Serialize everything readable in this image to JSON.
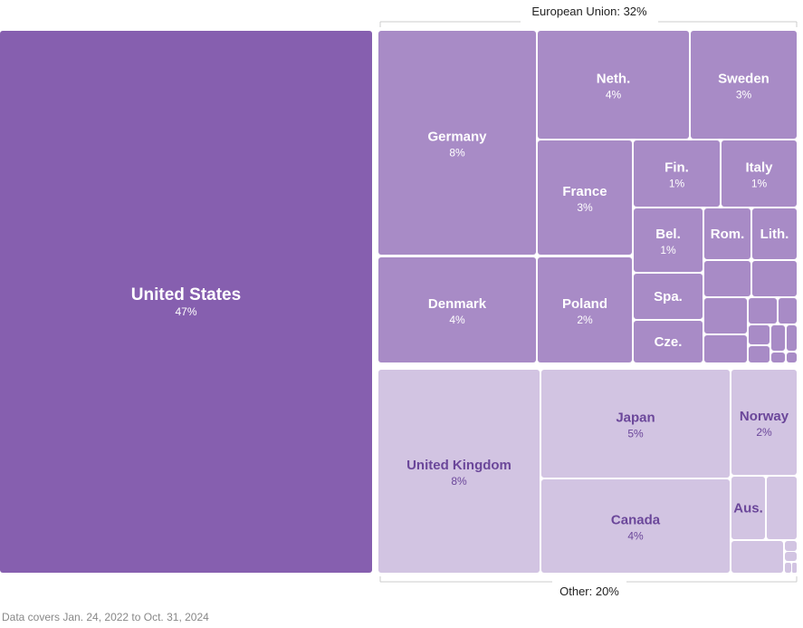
{
  "chart_data": {
    "type": "treemap",
    "unit": "%",
    "note": "Data covers Jan. 24, 2022 to Oct. 31, 2024",
    "colors": {
      "us": "#865faf",
      "eu": "#a88bc6",
      "other": "#d2c4e2",
      "dark_text": "#6b479a",
      "light_text": "#ffffff",
      "bracket": "#cccccc"
    },
    "groups": [
      {
        "id": "us",
        "label": ""
      },
      {
        "id": "eu",
        "label": "European Union: 32%"
      },
      {
        "id": "other",
        "label": "Other: 20%"
      }
    ],
    "items": [
      {
        "id": "usa",
        "group": "us",
        "name": "United States",
        "value": "47%"
      },
      {
        "id": "ger",
        "group": "eu",
        "name": "Germany",
        "value": "8%"
      },
      {
        "id": "den",
        "group": "eu",
        "name": "Denmark",
        "value": "4%"
      },
      {
        "id": "neth",
        "group": "eu",
        "name": "Neth.",
        "value": "4%"
      },
      {
        "id": "swe",
        "group": "eu",
        "name": "Sweden",
        "value": "3%"
      },
      {
        "id": "fra",
        "group": "eu",
        "name": "France",
        "value": "3%"
      },
      {
        "id": "fin",
        "group": "eu",
        "name": "Fin.",
        "value": "1%"
      },
      {
        "id": "ita",
        "group": "eu",
        "name": "Italy",
        "value": "1%"
      },
      {
        "id": "bel",
        "group": "eu",
        "name": "Bel.",
        "value": "1%"
      },
      {
        "id": "rom",
        "group": "eu",
        "name": "Rom.",
        "value": ""
      },
      {
        "id": "lith",
        "group": "eu",
        "name": "Lith.",
        "value": ""
      },
      {
        "id": "pol",
        "group": "eu",
        "name": "Poland",
        "value": "2%"
      },
      {
        "id": "spa",
        "group": "eu",
        "name": "Spa.",
        "value": ""
      },
      {
        "id": "cze",
        "group": "eu",
        "name": "Cze.",
        "value": ""
      },
      {
        "id": "eu-s1",
        "group": "eu",
        "name": "",
        "value": ""
      },
      {
        "id": "eu-s2",
        "group": "eu",
        "name": "",
        "value": ""
      },
      {
        "id": "eu-s3",
        "group": "eu",
        "name": "",
        "value": ""
      },
      {
        "id": "eu-s4",
        "group": "eu",
        "name": "",
        "value": ""
      },
      {
        "id": "eu-s5",
        "group": "eu",
        "name": "",
        "value": ""
      },
      {
        "id": "eu-s6",
        "group": "eu",
        "name": "",
        "value": ""
      },
      {
        "id": "eu-s7",
        "group": "eu",
        "name": "",
        "value": ""
      },
      {
        "id": "eu-s8",
        "group": "eu",
        "name": "",
        "value": ""
      },
      {
        "id": "eu-s9",
        "group": "eu",
        "name": "",
        "value": ""
      },
      {
        "id": "eu-s10",
        "group": "eu",
        "name": "",
        "value": ""
      },
      {
        "id": "eu-s11",
        "group": "eu",
        "name": "",
        "value": ""
      },
      {
        "id": "eu-s12",
        "group": "eu",
        "name": "",
        "value": ""
      },
      {
        "id": "eu-s13",
        "group": "eu",
        "name": "",
        "value": ""
      },
      {
        "id": "uk",
        "group": "other",
        "name": "United Kingdom",
        "value": "8%"
      },
      {
        "id": "jap",
        "group": "other",
        "name": "Japan",
        "value": "5%"
      },
      {
        "id": "can",
        "group": "other",
        "name": "Canada",
        "value": "4%"
      },
      {
        "id": "nor",
        "group": "other",
        "name": "Norway",
        "value": "2%"
      },
      {
        "id": "aus",
        "group": "other",
        "name": "Aus.",
        "value": ""
      },
      {
        "id": "ot-s1",
        "group": "other",
        "name": "",
        "value": ""
      },
      {
        "id": "ot-s2",
        "group": "other",
        "name": "",
        "value": ""
      },
      {
        "id": "ot-s3",
        "group": "other",
        "name": "",
        "value": ""
      },
      {
        "id": "ot-s4",
        "group": "other",
        "name": "",
        "value": ""
      },
      {
        "id": "ot-s5",
        "group": "other",
        "name": "",
        "value": ""
      },
      {
        "id": "ot-s6",
        "group": "other",
        "name": "",
        "value": ""
      }
    ]
  }
}
